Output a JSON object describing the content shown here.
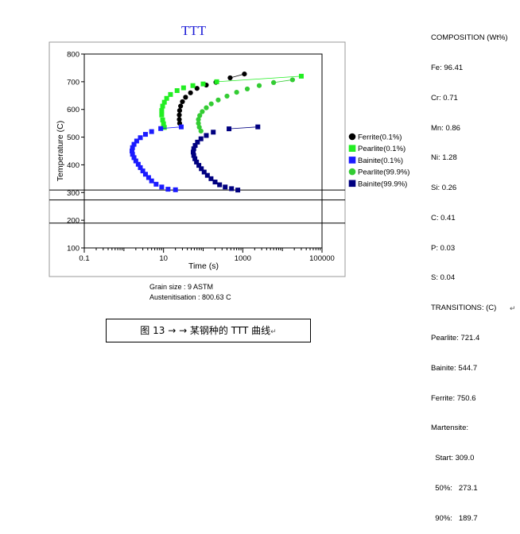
{
  "chart_data": {
    "type": "scatter",
    "title": "TTT",
    "xlabel": "Time (s)",
    "ylabel": "Temperature (C)",
    "xscale": "log",
    "xlim": [
      0.1,
      100000
    ],
    "ylim": [
      100,
      800
    ],
    "xticks": [
      "0.1",
      "10",
      "1000",
      "100000"
    ],
    "yticks": [
      "100",
      "200",
      "300",
      "400",
      "500",
      "600",
      "700",
      "800"
    ],
    "grid": false,
    "legend_position": "right",
    "hlines": [
      309.0,
      273.1,
      189.7
    ],
    "series": [
      {
        "name": "Ferrite(0.1%)",
        "marker": "circle",
        "color": "#000000",
        "points": [
          [
            1100,
            728
          ],
          [
            480,
            714
          ],
          [
            210,
            698
          ],
          [
            120,
            688
          ],
          [
            70,
            676
          ],
          [
            48,
            660
          ],
          [
            36,
            644
          ],
          [
            30,
            628
          ],
          [
            27,
            612
          ],
          [
            25.5,
            596
          ],
          [
            25,
            580
          ],
          [
            25,
            564
          ],
          [
            25.5,
            550
          ]
        ]
      },
      {
        "name": "Pearlite(0.1%)",
        "marker": "square",
        "color": "#22ee22",
        "points": [
          [
            30000,
            720
          ],
          [
            220,
            700
          ],
          [
            100,
            692
          ],
          [
            55,
            686
          ],
          [
            32,
            678
          ],
          [
            22,
            668
          ],
          [
            15,
            654
          ],
          [
            12,
            640
          ],
          [
            10.5,
            626
          ],
          [
            9.5,
            612
          ],
          [
            9,
            596
          ],
          [
            9,
            580
          ],
          [
            9.5,
            562
          ],
          [
            10,
            548
          ],
          [
            10.5,
            535
          ]
        ]
      },
      {
        "name": "Bainite(0.1%)",
        "marker": "square",
        "color": "#1b1bff",
        "points": [
          [
            28,
            537
          ],
          [
            8.5,
            531
          ],
          [
            5,
            520
          ],
          [
            3.5,
            510
          ],
          [
            2.6,
            498
          ],
          [
            2.1,
            486
          ],
          [
            1.8,
            474
          ],
          [
            1.65,
            462
          ],
          [
            1.6,
            450
          ],
          [
            1.65,
            438
          ],
          [
            1.8,
            426
          ],
          [
            2,
            414
          ],
          [
            2.3,
            402
          ],
          [
            2.6,
            390
          ],
          [
            3,
            378
          ],
          [
            3.5,
            366
          ],
          [
            4.2,
            354
          ],
          [
            5,
            342
          ],
          [
            6.5,
            330
          ],
          [
            9,
            320
          ],
          [
            13,
            312
          ],
          [
            20,
            310
          ]
        ]
      },
      {
        "name": "Pearlite(99.9%)",
        "marker": "circle",
        "color": "#33cc33",
        "points": [
          [
            18000,
            707
          ],
          [
            6000,
            697
          ],
          [
            2600,
            686
          ],
          [
            1300,
            674
          ],
          [
            700,
            662
          ],
          [
            400,
            648
          ],
          [
            240,
            634
          ],
          [
            160,
            620
          ],
          [
            120,
            606
          ],
          [
            95,
            592
          ],
          [
            82,
            578
          ],
          [
            76,
            564
          ],
          [
            76,
            550
          ],
          [
            80,
            536
          ],
          [
            88,
            522
          ]
        ]
      },
      {
        "name": "Bainite(99.9%)",
        "marker": "square",
        "color": "#000080",
        "points": [
          [
            2400,
            537
          ],
          [
            450,
            530
          ],
          [
            180,
            518
          ],
          [
            120,
            506
          ],
          [
            88,
            494
          ],
          [
            72,
            482
          ],
          [
            63,
            470
          ],
          [
            58,
            458
          ],
          [
            56,
            446
          ],
          [
            58,
            434
          ],
          [
            62,
            422
          ],
          [
            68,
            410
          ],
          [
            78,
            398
          ],
          [
            90,
            386
          ],
          [
            106,
            374
          ],
          [
            128,
            362
          ],
          [
            158,
            350
          ],
          [
            200,
            338
          ],
          [
            260,
            328
          ],
          [
            360,
            320
          ],
          [
            520,
            314
          ],
          [
            750,
            309
          ]
        ]
      }
    ]
  },
  "composition": {
    "heading": "COMPOSITION (Wt%)",
    "items": [
      "Fe: 96.41",
      "Cr: 0.71",
      "Mn: 0.86",
      "Ni: 1.28",
      "Si: 0.26",
      "C: 0.41",
      "P: 0.03",
      "S: 0.04"
    ]
  },
  "transitions": {
    "heading": "TRANSITIONS: (C)",
    "items": [
      "Pearlite: 721.4",
      "Bainite: 544.7",
      "Ferrite: 750.6",
      "Martensite:",
      "  Start: 309.0",
      "  50%:   273.1",
      "  90%:   189.7"
    ]
  },
  "meta": {
    "grain_size": "Grain size : 9 ASTM",
    "austenitisation": "Austenitisation : 800.63 C"
  },
  "caption": "图 13 →   → 某钢种的 TTT 曲线",
  "caption_mark": "↵",
  "return_mark": "↵"
}
